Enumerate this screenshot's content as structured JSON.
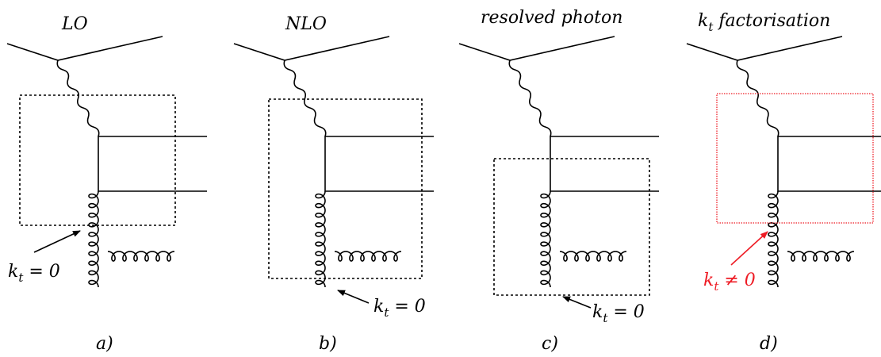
{
  "panels": [
    {
      "title": "LO",
      "caption": "a)",
      "kt_label": "k",
      "kt_sub": "t",
      "kt_rel": " = 0"
    },
    {
      "title": "NLO",
      "caption": "b)",
      "kt_label": "k",
      "kt_sub": "t",
      "kt_rel": " = 0"
    },
    {
      "title": "resolved photon",
      "caption": "c)",
      "kt_label": "k",
      "kt_sub": "t",
      "kt_rel": " = 0"
    },
    {
      "title_main": "k",
      "title_sub": "t",
      "title_rest": " factorisation",
      "caption": "d)",
      "kt_label": "k",
      "kt_sub": "t",
      "kt_rel": " ≠ 0"
    }
  ],
  "colors": {
    "line": "#000000",
    "highlight": "#ee1c25"
  }
}
